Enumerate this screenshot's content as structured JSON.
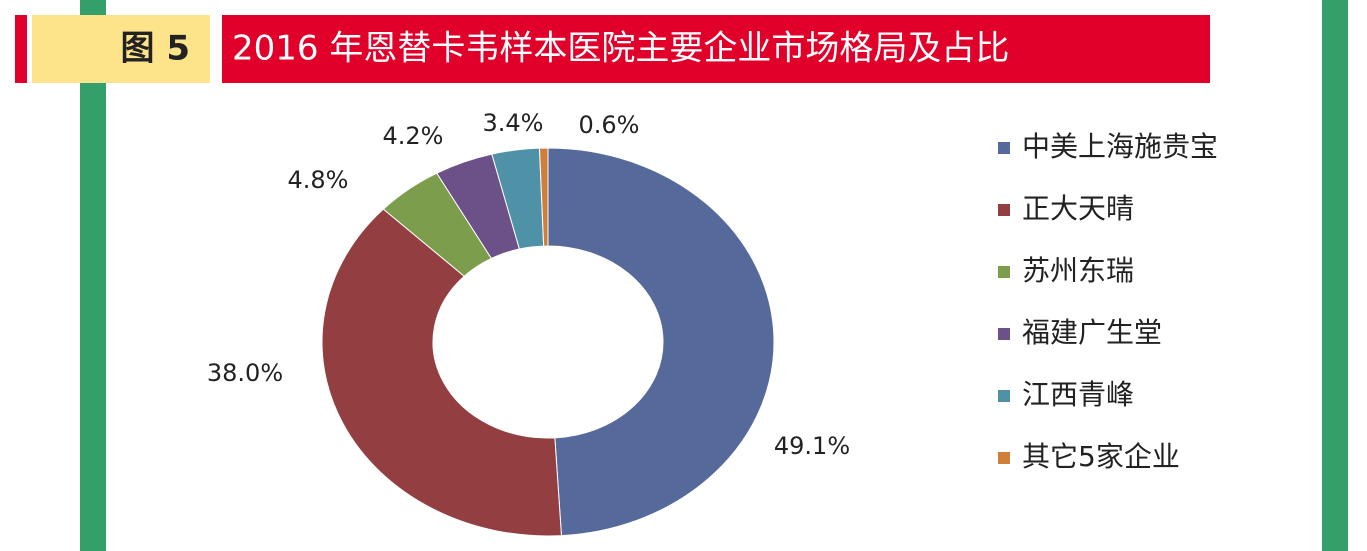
{
  "chart_data": {
    "type": "donut",
    "figure_label": "图 5",
    "title": "2016 年恩替卡韦样本医院主要企业市场格局及占比",
    "categories": [
      "中美上海施贵宝",
      "正大天晴",
      "苏州东瑞",
      "福建广生堂",
      "江西青峰",
      "其它5家企业"
    ],
    "values": [
      49.1,
      38.0,
      4.8,
      4.2,
      3.4,
      0.6
    ],
    "value_labels": [
      "49.1%",
      "38.0%",
      "4.8%",
      "4.2%",
      "3.4%",
      "0.6%"
    ],
    "colors": [
      "#56699b",
      "#933f42",
      "#7c9d4c",
      "#6b5188",
      "#4f91a6",
      "#d07f3a"
    ],
    "legend": "right"
  }
}
